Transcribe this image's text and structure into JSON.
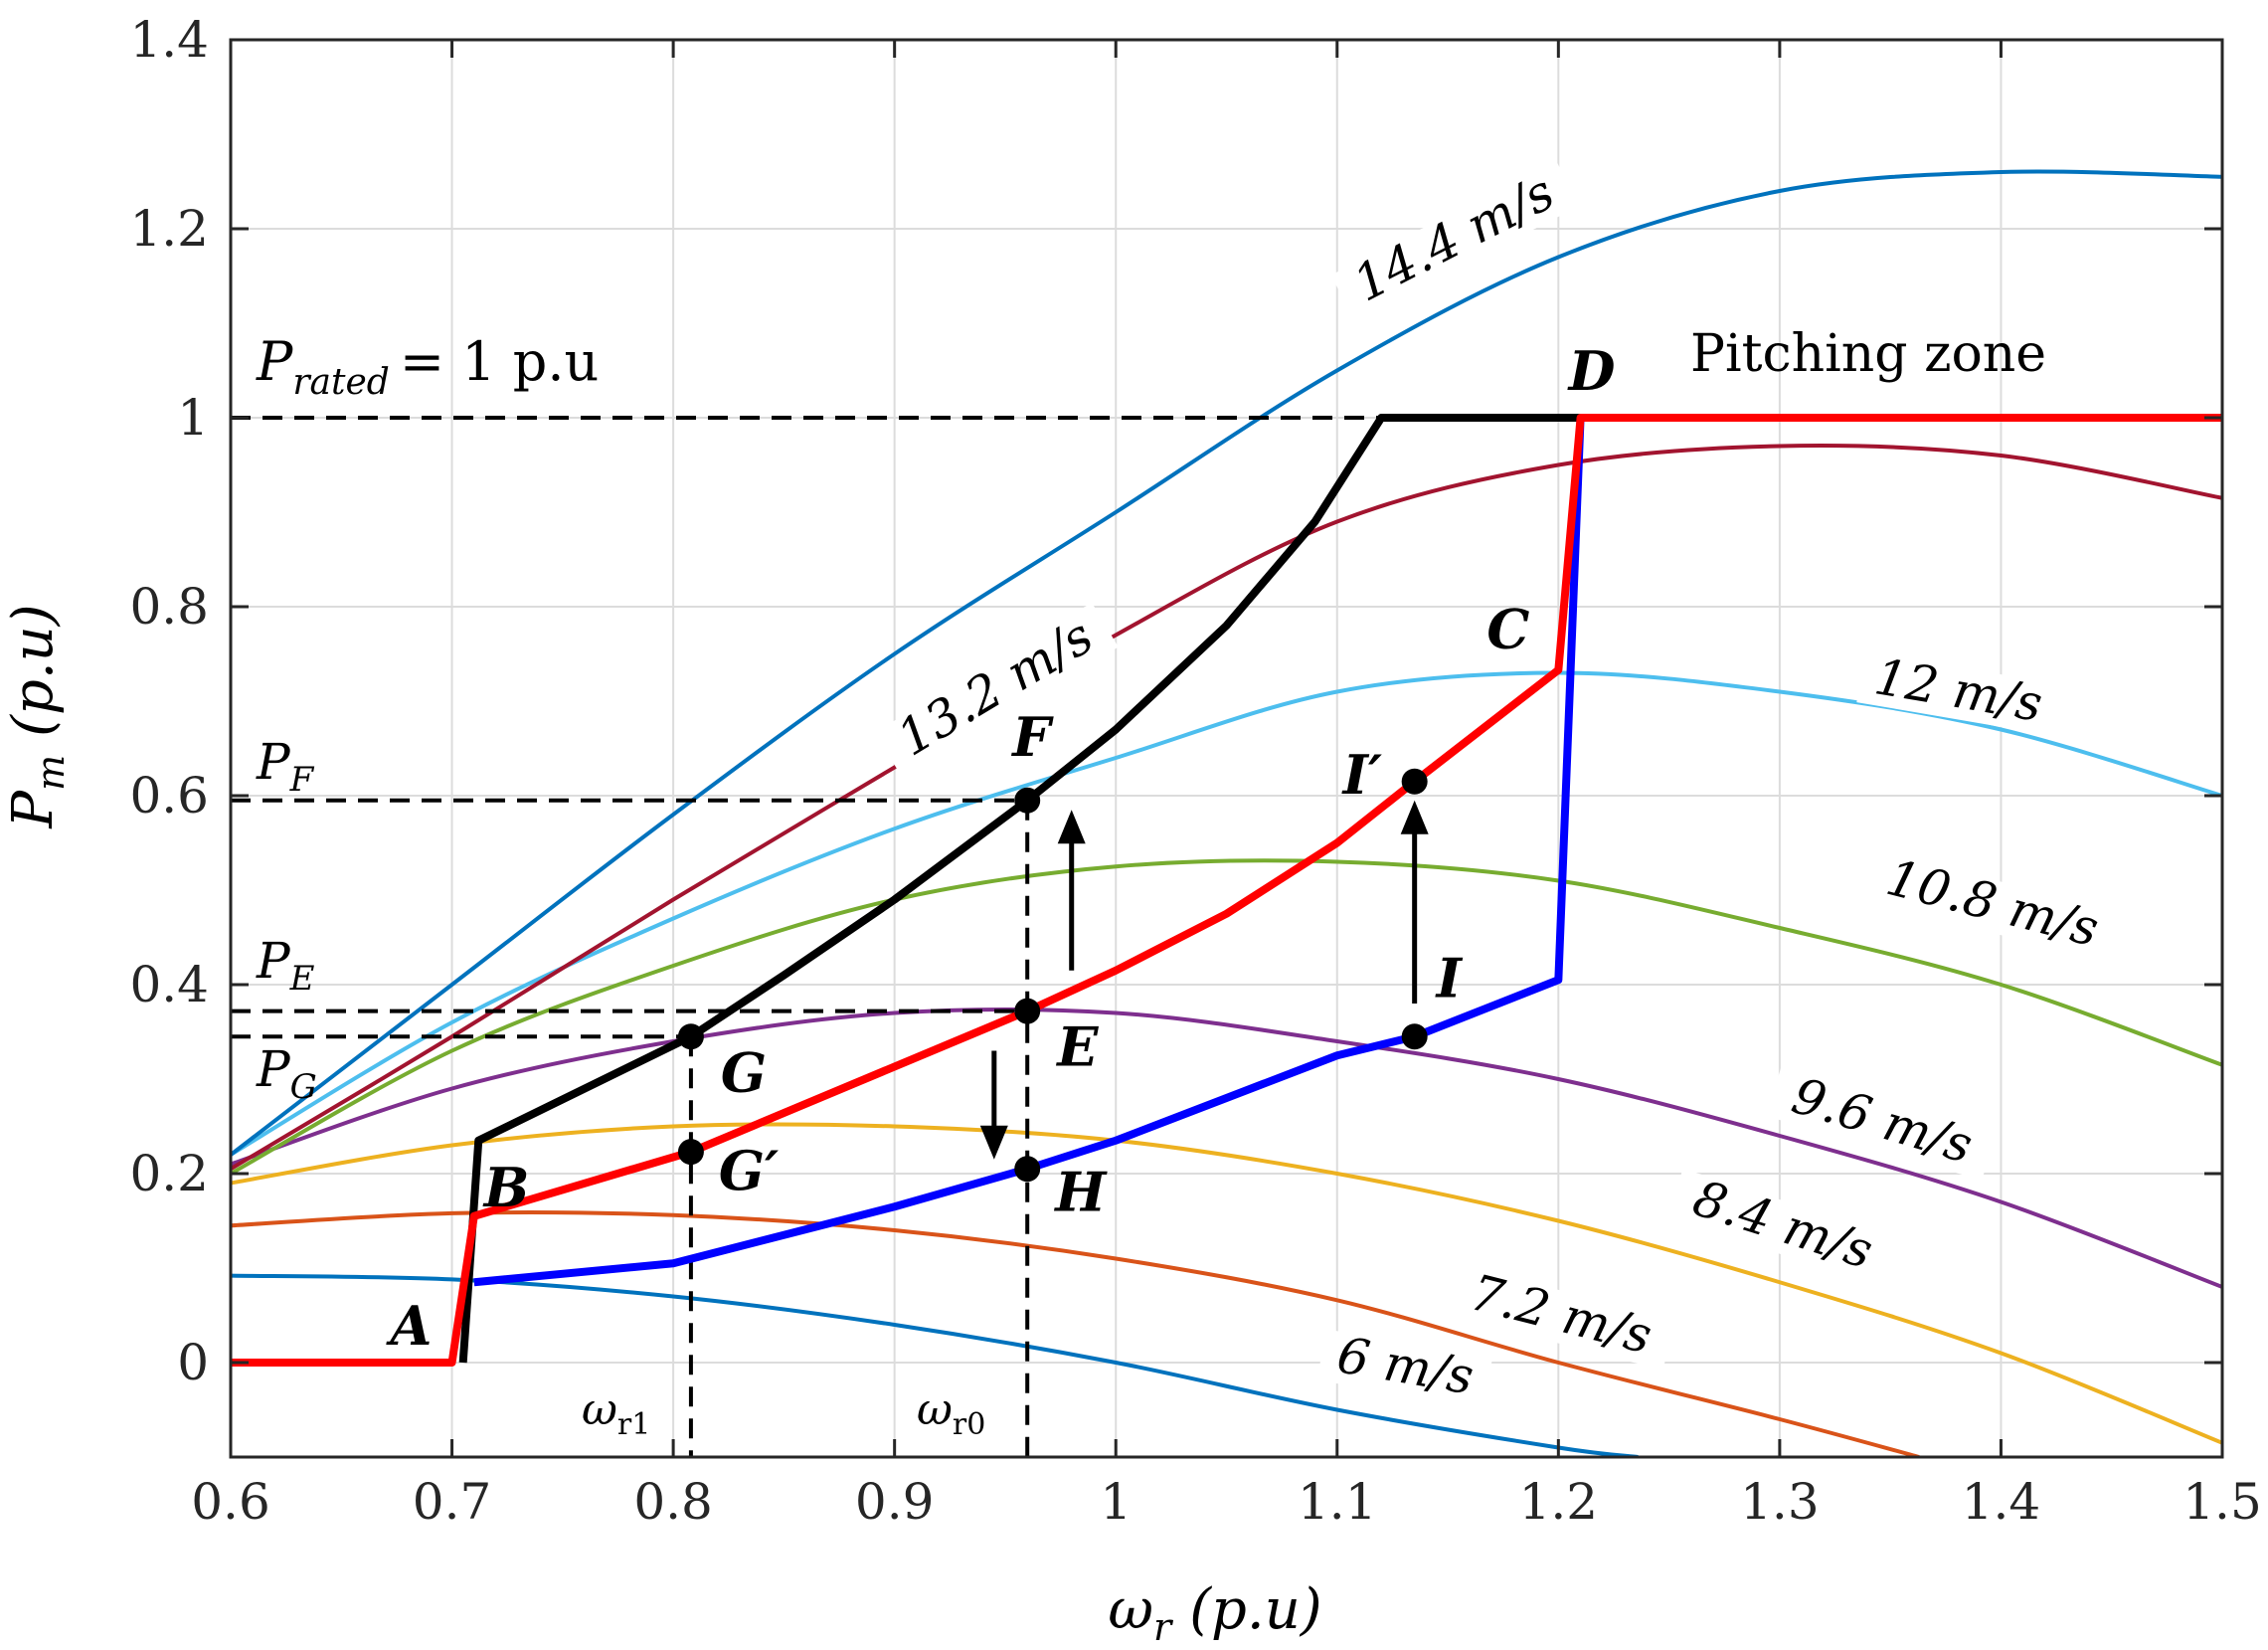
{
  "chart_data": {
    "type": "line",
    "xlabel_main": "ω",
    "xlabel_sub": "r",
    "xlabel_unit": "(p.u)",
    "ylabel_main": "P",
    "ylabel_sub": "m",
    "ylabel_unit": "(p.u)",
    "xlim": [
      0.6,
      1.5
    ],
    "ylim": [
      -0.1,
      1.4
    ],
    "xticks": [
      0.6,
      0.7,
      0.8,
      0.9,
      1,
      1.1,
      1.2,
      1.3,
      1.4,
      1.5
    ],
    "xtick_labels": [
      "0.6",
      "0.7",
      "0.8",
      "0.9",
      "1",
      "1.1",
      "1.2",
      "1.3",
      "1.4",
      "1.5"
    ],
    "yticks": [
      0,
      0.2,
      0.4,
      0.6,
      0.8,
      1,
      1.2,
      1.4
    ],
    "ytick_labels": [
      "0",
      "0.2",
      "0.4",
      "0.6",
      "0.8",
      "1",
      "1.2",
      "1.4"
    ],
    "grid": true,
    "wind_curves": [
      {
        "name": "6 m/s",
        "color": "#0072BD",
        "x": [
          0.6,
          0.7,
          0.8,
          0.9,
          1.0,
          1.1,
          1.2,
          1.236
        ],
        "y": [
          0.092,
          0.088,
          0.07,
          0.04,
          0.0,
          -0.05,
          -0.09,
          -0.1
        ]
      },
      {
        "name": "7.2 m/s",
        "color": "#D95319",
        "x": [
          0.6,
          0.7,
          0.8,
          0.9,
          1.0,
          1.1,
          1.2,
          1.3,
          1.363
        ],
        "y": [
          0.145,
          0.158,
          0.156,
          0.14,
          0.11,
          0.066,
          0.0,
          -0.06,
          -0.1
        ]
      },
      {
        "name": "8.4 m/s",
        "color": "#EDB120",
        "x": [
          0.6,
          0.7,
          0.8,
          0.9,
          1.0,
          1.1,
          1.2,
          1.3,
          1.4,
          1.5
        ],
        "y": [
          0.19,
          0.23,
          0.25,
          0.25,
          0.235,
          0.2,
          0.15,
          0.085,
          0.01,
          -0.085
        ]
      },
      {
        "name": "9.6 m/s",
        "color": "#7E2F8E",
        "x": [
          0.6,
          0.7,
          0.8,
          0.9,
          1.0,
          1.1,
          1.2,
          1.3,
          1.4,
          1.5
        ],
        "y": [
          0.21,
          0.29,
          0.34,
          0.37,
          0.37,
          0.34,
          0.3,
          0.24,
          0.17,
          0.08
        ]
      },
      {
        "name": "10.8 m/s",
        "color": "#77AC30",
        "x": [
          0.6,
          0.7,
          0.8,
          0.9,
          1.0,
          1.1,
          1.2,
          1.3,
          1.4,
          1.5
        ],
        "y": [
          0.2,
          0.33,
          0.42,
          0.49,
          0.525,
          0.53,
          0.51,
          0.46,
          0.4,
          0.315
        ]
      },
      {
        "name": "12 m/s",
        "color": "#4DBEEE",
        "x": [
          0.6,
          0.7,
          0.8,
          0.9,
          1.0,
          1.1,
          1.2,
          1.3,
          1.4,
          1.5
        ],
        "y": [
          0.22,
          0.36,
          0.47,
          0.565,
          0.64,
          0.71,
          0.73,
          0.71,
          0.67,
          0.6
        ]
      },
      {
        "name": "13.2 m/s",
        "color": "#A2142F",
        "x": [
          0.6,
          0.7,
          0.8,
          0.9,
          1.0,
          1.1,
          1.2,
          1.3,
          1.4,
          1.5
        ],
        "y": [
          0.205,
          0.345,
          0.49,
          0.63,
          0.77,
          0.89,
          0.95,
          0.97,
          0.96,
          0.915
        ]
      },
      {
        "name": "14.4 m/s",
        "color": "#0072BD",
        "x": [
          0.6,
          0.7,
          0.8,
          0.9,
          1.0,
          1.1,
          1.2,
          1.3,
          1.4,
          1.5
        ],
        "y": [
          0.22,
          0.4,
          0.58,
          0.75,
          0.9,
          1.05,
          1.17,
          1.24,
          1.26,
          1.255
        ]
      }
    ],
    "control_curves": [
      {
        "name": "red",
        "color": "#FF0000",
        "x": [
          0.6,
          0.7,
          0.71,
          0.808,
          0.96,
          1.0,
          1.05,
          1.1,
          1.135,
          1.2,
          1.21,
          1.5
        ],
        "y": [
          0.0,
          0.0,
          0.155,
          0.223,
          0.372,
          0.415,
          0.475,
          0.55,
          0.615,
          0.733,
          1.0,
          1.0
        ]
      },
      {
        "name": "black",
        "color": "#000000",
        "x": [
          0.705,
          0.712,
          0.808,
          0.85,
          0.9,
          0.96,
          1.0,
          1.05,
          1.09,
          1.12,
          1.21
        ],
        "y": [
          0.0,
          0.235,
          0.345,
          0.41,
          0.49,
          0.595,
          0.67,
          0.78,
          0.89,
          1.0,
          1.0
        ]
      },
      {
        "name": "blue",
        "color": "#0000FF",
        "x": [
          0.71,
          0.8,
          0.9,
          0.96,
          1.0,
          1.05,
          1.1,
          1.135,
          1.2,
          1.21
        ],
        "y": [
          0.085,
          0.105,
          0.165,
          0.205,
          0.235,
          0.28,
          0.325,
          0.345,
          0.405,
          1.0
        ]
      }
    ],
    "points": [
      {
        "name": "A",
        "x": 0.7,
        "y": 0.0,
        "marker": false
      },
      {
        "name": "B",
        "x": 0.71,
        "y": 0.155,
        "marker": false
      },
      {
        "name": "C",
        "x": 1.2,
        "y": 0.733,
        "marker": false
      },
      {
        "name": "D",
        "x": 1.21,
        "y": 1.0,
        "marker": false
      },
      {
        "name": "E",
        "x": 0.96,
        "y": 0.372,
        "marker": true
      },
      {
        "name": "F",
        "x": 0.96,
        "y": 0.595,
        "marker": true
      },
      {
        "name": "G",
        "x": 0.808,
        "y": 0.345,
        "marker": true
      },
      {
        "name": "G′",
        "x": 0.808,
        "y": 0.223,
        "marker": true
      },
      {
        "name": "H",
        "x": 0.96,
        "y": 0.205,
        "marker": true
      },
      {
        "name": "I",
        "x": 1.135,
        "y": 0.345,
        "marker": true
      },
      {
        "name": "I′",
        "x": 1.135,
        "y": 0.615,
        "marker": true
      }
    ],
    "annotations": {
      "p_rated_main": "P",
      "p_rated_sub": "rated",
      "p_rated_rest": "= 1 p.u",
      "pitching_zone": "Pitching zone",
      "pf_main": "P",
      "pf_sub": "F",
      "pe_main": "P",
      "pe_sub": "E",
      "pg_main": "P",
      "pg_sub": "G",
      "wr1_main": "ω",
      "wr1_sub": "r1",
      "wr0_main": "ω",
      "wr0_sub": "r0"
    },
    "reference_lines": {
      "p_rated": 1.0,
      "p_f": 0.595,
      "p_e": 0.372,
      "p_g": 0.345,
      "w_r1": 0.808,
      "w_r0": 0.96
    },
    "arrows": [
      {
        "x": 0.98,
        "from": 0.415,
        "to": 0.585
      },
      {
        "x": 1.135,
        "from": 0.38,
        "to": 0.595
      },
      {
        "x": 0.945,
        "from": 0.33,
        "to": 0.215
      }
    ]
  }
}
